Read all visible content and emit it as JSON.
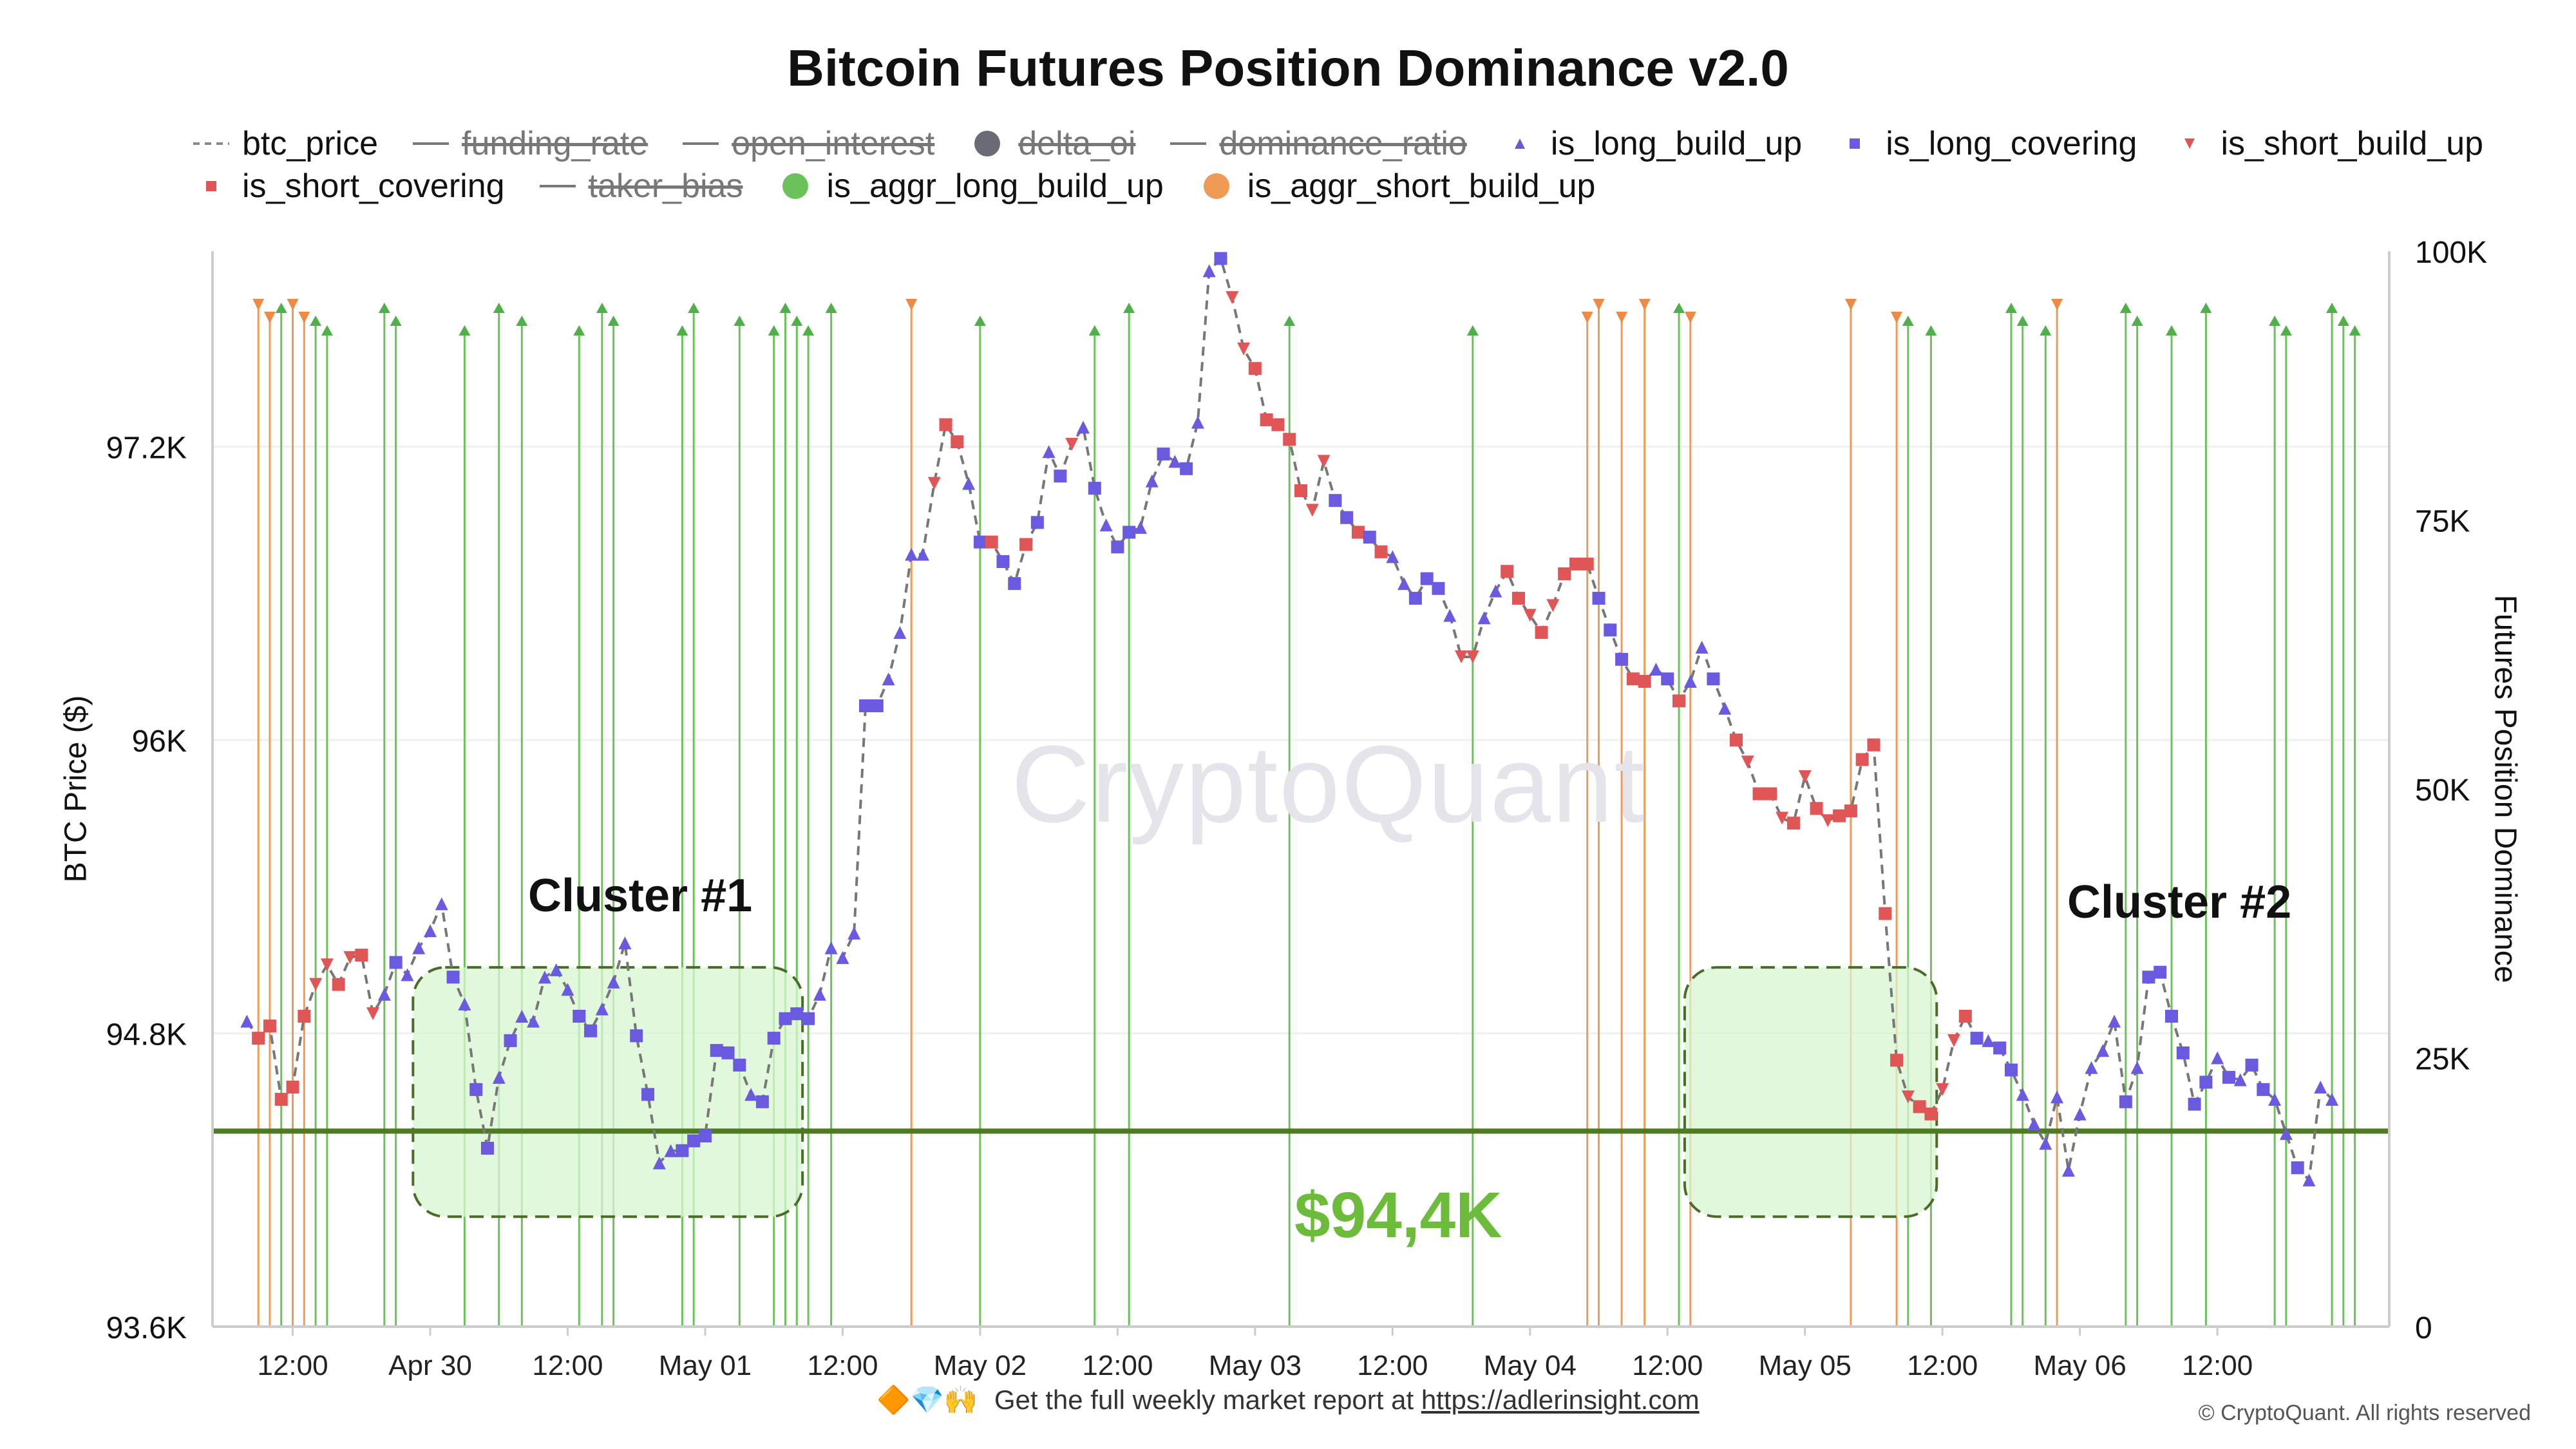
{
  "title": "Bitcoin Futures Position Dominance v2.0",
  "legend": [
    {
      "label": "btc_price",
      "symbol": "dashed-line",
      "color": "#888888",
      "active": true
    },
    {
      "label": "funding_rate",
      "symbol": "line",
      "color": "#777777",
      "active": false
    },
    {
      "label": "open_interest",
      "symbol": "line",
      "color": "#777777",
      "active": false
    },
    {
      "label": "delta_oi",
      "symbol": "circle",
      "color": "#6b6b78",
      "active": false
    },
    {
      "label": "dominance_ratio",
      "symbol": "line",
      "color": "#777777",
      "active": false
    },
    {
      "label": "is_long_build_up",
      "symbol": "triangle-up",
      "color": "#6a5acd",
      "active": true
    },
    {
      "label": "is_long_covering",
      "symbol": "square",
      "color": "#6a5ae0",
      "active": true
    },
    {
      "label": "is_short_build_up",
      "symbol": "triangle-down",
      "color": "#e05555",
      "active": true
    },
    {
      "label": "is_short_covering",
      "symbol": "square",
      "color": "#e05555",
      "active": true
    },
    {
      "label": "taker_bias",
      "symbol": "line",
      "color": "#777777",
      "active": false
    },
    {
      "label": "is_aggr_long_build_up",
      "symbol": "circle",
      "color": "#6cc25a",
      "active": true
    },
    {
      "label": "is_aggr_short_build_up",
      "symbol": "circle",
      "color": "#ef9a55",
      "active": true
    }
  ],
  "axes": {
    "left_title": "BTC Price ($)",
    "right_title": "Futures Position Dominance",
    "left_ticks": [
      "97.2K",
      "96K",
      "94.8K",
      "93.6K"
    ],
    "right_ticks": [
      "100K",
      "75K",
      "50K",
      "25K",
      "0"
    ],
    "x_ticks": [
      "12:00",
      "Apr 30",
      "12:00",
      "May 01",
      "12:00",
      "May 02",
      "12:00",
      "May 03",
      "12:00",
      "May 04",
      "12:00",
      "May 05",
      "12:00",
      "May 06",
      "12:00"
    ]
  },
  "annotations": {
    "cluster1": "Cluster #1",
    "cluster2": "Cluster #2",
    "level": "$94,4K"
  },
  "watermark": "CryptoQuant",
  "footer": {
    "emojis": "🔶💎🙌",
    "text": "Get the full weekly market report at",
    "link": "https://adlerinsight.com"
  },
  "copyright": "© CryptoQuant. All rights reserved",
  "colors": {
    "long_marker": "#6a5ae0",
    "short_marker": "#e05555",
    "aggr_long_line": "#6cc25a",
    "aggr_short_line": "#ef9a55",
    "support_line": "#4e7a22",
    "cluster_fill": "#d8f5d0",
    "level_text": "#6dbb3a"
  },
  "chart_data": {
    "type": "line",
    "x_unit": "hours since 00:00 Apr 29 (hourly)",
    "y_left_range": [
      93600,
      98000
    ],
    "y_right_range": [
      0,
      100000
    ],
    "support_level": 94400,
    "points": [
      [
        8,
        94850,
        "ltri"
      ],
      [
        9,
        94780,
        "ssq"
      ],
      [
        10,
        94830,
        "ssq"
      ],
      [
        11,
        94530,
        "ssq"
      ],
      [
        12,
        94580,
        "ssq"
      ],
      [
        13,
        94870,
        "ssq"
      ],
      [
        14,
        95000,
        "stri"
      ],
      [
        15,
        95080,
        "stri"
      ],
      [
        16,
        95000,
        "ssq"
      ],
      [
        17,
        95110,
        "stri"
      ],
      [
        18,
        95120,
        "ssq"
      ],
      [
        19,
        94880,
        "stri"
      ],
      [
        20,
        94960,
        "ltri"
      ],
      [
        21,
        95090,
        "lsq"
      ],
      [
        22,
        95040,
        "ltri"
      ],
      [
        23,
        95150,
        "ltri"
      ],
      [
        24,
        95220,
        "ltri"
      ],
      [
        25,
        95330,
        "ltri"
      ],
      [
        26,
        95030,
        "lsq"
      ],
      [
        27,
        94920,
        "ltri"
      ],
      [
        28,
        94570,
        "lsq"
      ],
      [
        29,
        94330,
        "lsq"
      ],
      [
        30,
        94620,
        "ltri"
      ],
      [
        31,
        94770,
        "lsq"
      ],
      [
        32,
        94870,
        "ltri"
      ],
      [
        33,
        94850,
        "ltri"
      ],
      [
        34,
        95030,
        "ltri"
      ],
      [
        35,
        95060,
        "ltri"
      ],
      [
        36,
        94980,
        "ltri"
      ],
      [
        37,
        94870,
        "lsq"
      ],
      [
        38,
        94810,
        "lsq"
      ],
      [
        39,
        94900,
        "ltri"
      ],
      [
        40,
        95010,
        "ltri"
      ],
      [
        41,
        95170,
        "ltri"
      ],
      [
        42,
        94790,
        "lsq"
      ],
      [
        43,
        94550,
        "lsq"
      ],
      [
        44,
        94270,
        "ltri"
      ],
      [
        45,
        94320,
        "ltri"
      ],
      [
        46,
        94320,
        "lsq"
      ],
      [
        47,
        94360,
        "lsq"
      ],
      [
        48,
        94380,
        "lsq"
      ],
      [
        49,
        94730,
        "lsq"
      ],
      [
        50,
        94720,
        "lsq"
      ],
      [
        51,
        94670,
        "lsq"
      ],
      [
        52,
        94550,
        "ltri"
      ],
      [
        53,
        94520,
        "lsq"
      ],
      [
        54,
        94780,
        "lsq"
      ],
      [
        55,
        94860,
        "lsq"
      ],
      [
        56,
        94880,
        "lsq"
      ],
      [
        57,
        94860,
        "lsq"
      ],
      [
        58,
        94960,
        "ltri"
      ],
      [
        59,
        95150,
        "ltri"
      ],
      [
        60,
        95110,
        "ltri"
      ],
      [
        61,
        95210,
        "ltri"
      ],
      [
        62,
        96140,
        "lsq"
      ],
      [
        63,
        96140,
        "lsq"
      ],
      [
        64,
        96250,
        "ltri"
      ],
      [
        65,
        96440,
        "ltri"
      ],
      [
        66,
        96760,
        "ltri"
      ],
      [
        67,
        96760,
        "ltri"
      ],
      [
        68,
        97050,
        "stri"
      ],
      [
        69,
        97290,
        "ssq"
      ],
      [
        70,
        97220,
        "ssq"
      ],
      [
        71,
        97050,
        "ltri"
      ],
      [
        72,
        96810,
        "lsq"
      ],
      [
        73,
        96810,
        "ssq"
      ],
      [
        74,
        96730,
        "lsq"
      ],
      [
        75,
        96640,
        "lsq"
      ],
      [
        76,
        96800,
        "ssq"
      ],
      [
        77,
        96890,
        "lsq"
      ],
      [
        78,
        97180,
        "ltri"
      ],
      [
        79,
        97080,
        "lsq"
      ],
      [
        80,
        97210,
        "stri"
      ],
      [
        81,
        97280,
        "ltri"
      ],
      [
        82,
        97030,
        "lsq"
      ],
      [
        83,
        96880,
        "ltri"
      ],
      [
        84,
        96790,
        "lsq"
      ],
      [
        85,
        96850,
        "lsq"
      ],
      [
        86,
        96870,
        "ltri"
      ],
      [
        87,
        97060,
        "ltri"
      ],
      [
        88,
        97170,
        "lsq"
      ],
      [
        89,
        97140,
        "ltri"
      ],
      [
        90,
        97110,
        "lsq"
      ],
      [
        91,
        97300,
        "ltri"
      ],
      [
        92,
        97920,
        "ltri"
      ],
      [
        93,
        97970,
        "lsq"
      ],
      [
        94,
        97810,
        "stri"
      ],
      [
        95,
        97600,
        "stri"
      ],
      [
        96,
        97520,
        "ssq"
      ],
      [
        97,
        97310,
        "ssq"
      ],
      [
        98,
        97290,
        "ssq"
      ],
      [
        99,
        97230,
        "ssq"
      ],
      [
        100,
        97020,
        "ssq"
      ],
      [
        101,
        96940,
        "stri"
      ],
      [
        102,
        97140,
        "stri"
      ],
      [
        103,
        96980,
        "lsq"
      ],
      [
        104,
        96910,
        "lsq"
      ],
      [
        105,
        96850,
        "ssq"
      ],
      [
        106,
        96830,
        "lsq"
      ],
      [
        107,
        96770,
        "ssq"
      ],
      [
        108,
        96750,
        "ltri"
      ],
      [
        109,
        96640,
        "ltri"
      ],
      [
        110,
        96580,
        "lsq"
      ],
      [
        111,
        96660,
        "lsq"
      ],
      [
        112,
        96620,
        "lsq"
      ],
      [
        113,
        96510,
        "ltri"
      ],
      [
        114,
        96340,
        "stri"
      ],
      [
        115,
        96340,
        "stri"
      ],
      [
        116,
        96500,
        "ltri"
      ],
      [
        117,
        96610,
        "ltri"
      ],
      [
        118,
        96690,
        "ssq"
      ],
      [
        119,
        96580,
        "ssq"
      ],
      [
        120,
        96510,
        "stri"
      ],
      [
        121,
        96440,
        "ssq"
      ],
      [
        122,
        96550,
        "stri"
      ],
      [
        123,
        96680,
        "ssq"
      ],
      [
        124,
        96720,
        "ssq"
      ],
      [
        125,
        96720,
        "ssq"
      ],
      [
        126,
        96580,
        "lsq"
      ],
      [
        127,
        96450,
        "lsq"
      ],
      [
        128,
        96330,
        "lsq"
      ],
      [
        129,
        96250,
        "ssq"
      ],
      [
        130,
        96240,
        "ssq"
      ],
      [
        131,
        96290,
        "ltri"
      ],
      [
        132,
        96250,
        "lsq"
      ],
      [
        133,
        96160,
        "ssq"
      ],
      [
        134,
        96240,
        "ltri"
      ],
      [
        135,
        96380,
        "ltri"
      ],
      [
        136,
        96250,
        "lsq"
      ],
      [
        137,
        96130,
        "ltri"
      ],
      [
        138,
        96000,
        "ssq"
      ],
      [
        139,
        95910,
        "stri"
      ],
      [
        140,
        95780,
        "ssq"
      ],
      [
        141,
        95780,
        "ssq"
      ],
      [
        142,
        95680,
        "stri"
      ],
      [
        143,
        95660,
        "ssq"
      ],
      [
        144,
        95850,
        "stri"
      ],
      [
        145,
        95720,
        "ssq"
      ],
      [
        146,
        95670,
        "stri"
      ],
      [
        147,
        95690,
        "ssq"
      ],
      [
        148,
        95710,
        "ssq"
      ],
      [
        149,
        95920,
        "ssq"
      ],
      [
        150,
        95980,
        "ssq"
      ],
      [
        151,
        95290,
        "ssq"
      ],
      [
        152,
        94690,
        "ssq"
      ],
      [
        153,
        94540,
        "stri"
      ],
      [
        154,
        94500,
        "ssq"
      ],
      [
        155,
        94470,
        "ssq"
      ],
      [
        156,
        94570,
        "stri"
      ],
      [
        157,
        94770,
        "stri"
      ],
      [
        158,
        94870,
        "ssq"
      ],
      [
        159,
        94780,
        "lsq"
      ],
      [
        160,
        94770,
        "ltri"
      ],
      [
        161,
        94740,
        "lsq"
      ],
      [
        162,
        94650,
        "lsq"
      ],
      [
        163,
        94550,
        "ltri"
      ],
      [
        164,
        94430,
        "ltri"
      ],
      [
        165,
        94350,
        "ltri"
      ],
      [
        166,
        94540,
        "ltri"
      ],
      [
        167,
        94240,
        "ltri"
      ],
      [
        168,
        94470,
        "ltri"
      ],
      [
        169,
        94660,
        "ltri"
      ],
      [
        170,
        94730,
        "ltri"
      ],
      [
        171,
        94850,
        "ltri"
      ],
      [
        172,
        94520,
        "lsq"
      ],
      [
        173,
        94660,
        "ltri"
      ],
      [
        174,
        95030,
        "lsq"
      ],
      [
        175,
        95050,
        "lsq"
      ],
      [
        176,
        94870,
        "lsq"
      ],
      [
        177,
        94720,
        "lsq"
      ],
      [
        178,
        94510,
        "lsq"
      ],
      [
        179,
        94600,
        "lsq"
      ],
      [
        180,
        94700,
        "ltri"
      ],
      [
        181,
        94620,
        "lsq"
      ],
      [
        182,
        94610,
        "ltri"
      ],
      [
        183,
        94670,
        "lsq"
      ],
      [
        184,
        94570,
        "lsq"
      ],
      [
        185,
        94530,
        "ltri"
      ],
      [
        186,
        94390,
        "ltri"
      ],
      [
        187,
        94250,
        "lsq"
      ],
      [
        188,
        94200,
        "ltri"
      ],
      [
        189,
        94580,
        "ltri"
      ],
      [
        190,
        94530,
        "ltri"
      ]
    ],
    "aggr_long_build_up_hours": [
      11,
      14,
      15,
      20,
      21,
      27,
      30,
      32,
      37,
      39,
      40,
      46,
      47,
      51,
      54,
      55,
      56,
      57,
      59,
      72,
      82,
      85,
      99,
      115,
      133,
      153,
      155,
      162,
      163,
      165,
      172,
      173,
      176,
      179,
      185,
      186,
      190,
      191,
      192
    ],
    "aggr_short_build_up_hours": [
      9,
      10,
      12,
      13,
      66,
      125,
      126,
      128,
      130,
      134,
      148,
      152,
      166
    ],
    "clusters": [
      {
        "label": "Cluster #1",
        "x_range": [
          22.5,
          56.5
        ],
        "y_range": [
          94050,
          95070
        ]
      },
      {
        "label": "Cluster #2",
        "x_range": [
          133.5,
          155.5
        ],
        "y_range": [
          94050,
          95070
        ]
      }
    ]
  }
}
